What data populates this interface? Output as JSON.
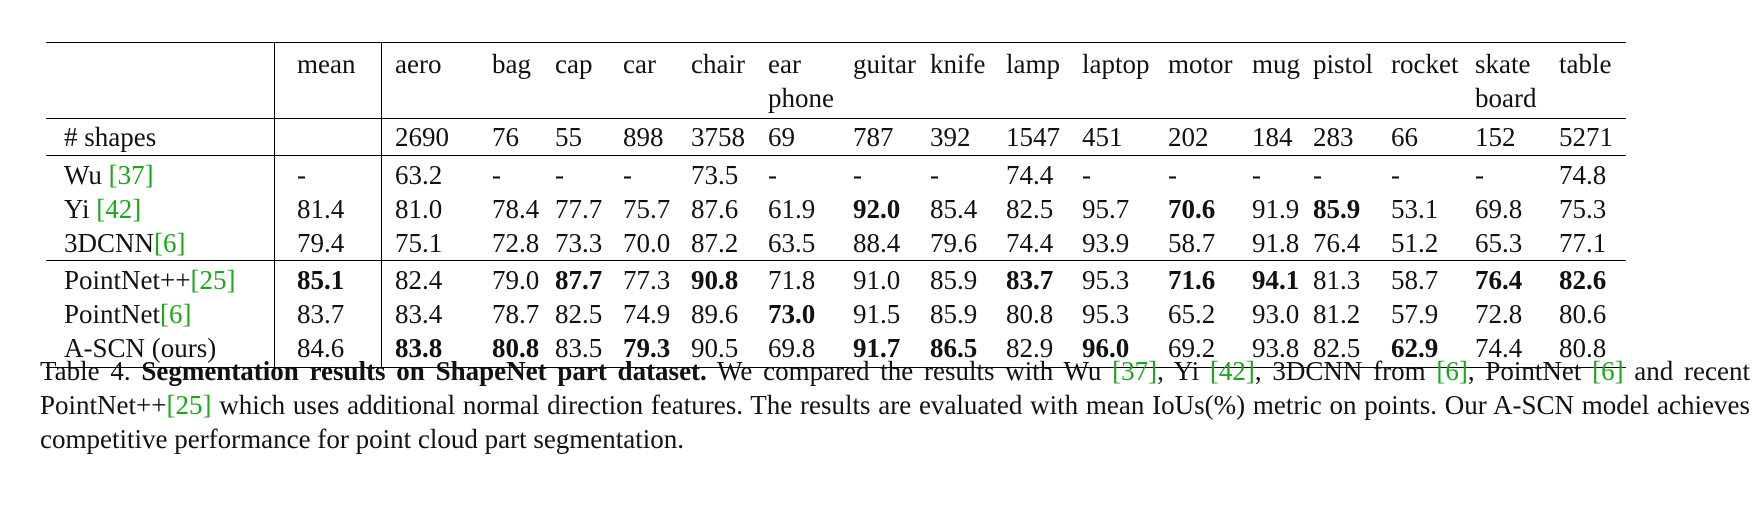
{
  "table": {
    "mean_header": "mean",
    "columns": [
      {
        "l1": "aero",
        "l2": ""
      },
      {
        "l1": "bag",
        "l2": ""
      },
      {
        "l1": "cap",
        "l2": ""
      },
      {
        "l1": "car",
        "l2": ""
      },
      {
        "l1": "chair",
        "l2": ""
      },
      {
        "l1": "ear",
        "l2": "phone"
      },
      {
        "l1": "guitar",
        "l2": ""
      },
      {
        "l1": "knife",
        "l2": ""
      },
      {
        "l1": "lamp",
        "l2": ""
      },
      {
        "l1": "laptop",
        "l2": ""
      },
      {
        "l1": "motor",
        "l2": ""
      },
      {
        "l1": "mug",
        "l2": ""
      },
      {
        "l1": "pistol",
        "l2": ""
      },
      {
        "l1": "rocket",
        "l2": ""
      },
      {
        "l1": "skate",
        "l2": "board"
      },
      {
        "l1": "table",
        "l2": ""
      }
    ],
    "col_widths": [
      97,
      63,
      68,
      68,
      77,
      85,
      77,
      76,
      76,
      86,
      84,
      58,
      78,
      84,
      84,
      80
    ],
    "rows": [
      {
        "name": "# shapes",
        "cite": "",
        "mean": "",
        "values": [
          "2690",
          "76",
          "55",
          "898",
          "3758",
          "69",
          "787",
          "392",
          "1547",
          "451",
          "202",
          "184",
          "283",
          "66",
          "152",
          "5271"
        ],
        "bold": []
      },
      {
        "name": "Wu ",
        "cite": "[37]",
        "mean": "-",
        "values": [
          "63.2",
          "-",
          "-",
          "-",
          "73.5",
          "-",
          "-",
          "-",
          "74.4",
          "-",
          "-",
          "-",
          "-",
          "-",
          "-",
          "74.8"
        ],
        "bold": []
      },
      {
        "name": "Yi ",
        "cite": "[42]",
        "mean": "81.4",
        "values": [
          "81.0",
          "78.4",
          "77.7",
          "75.7",
          "87.6",
          "61.9",
          "92.0",
          "85.4",
          "82.5",
          "95.7",
          "70.6",
          "91.9",
          "85.9",
          "53.1",
          "69.8",
          "75.3"
        ],
        "bold": [
          6,
          10,
          12
        ]
      },
      {
        "name": "3DCNN",
        "cite": "[6]",
        "mean": "79.4",
        "values": [
          "75.1",
          "72.8",
          "73.3",
          "70.0",
          "87.2",
          "63.5",
          "88.4",
          "79.6",
          "74.4",
          "93.9",
          "58.7",
          "91.8",
          "76.4",
          "51.2",
          "65.3",
          "77.1"
        ],
        "bold": []
      },
      {
        "name": "PointNet++",
        "cite": "[25]",
        "mean": "85.1",
        "mean_bold": true,
        "values": [
          "82.4",
          "79.0",
          "87.7",
          "77.3",
          "90.8",
          "71.8",
          "91.0",
          "85.9",
          "83.7",
          "95.3",
          "71.6",
          "94.1",
          "81.3",
          "58.7",
          "76.4",
          "82.6"
        ],
        "bold": [
          2,
          4,
          8,
          10,
          11,
          14,
          15
        ]
      },
      {
        "name": "PointNet",
        "cite": "[6]",
        "mean": "83.7",
        "values": [
          "83.4",
          "78.7",
          "82.5",
          "74.9",
          "89.6",
          "73.0",
          "91.5",
          "85.9",
          "80.8",
          "95.3",
          "65.2",
          "93.0",
          "81.2",
          "57.9",
          "72.8",
          "80.6"
        ],
        "bold": [
          5
        ]
      },
      {
        "name": "A-SCN (ours)",
        "cite": "",
        "mean": "84.6",
        "values": [
          "83.8",
          "80.8",
          "83.5",
          "79.3",
          "90.5",
          "69.8",
          "91.7",
          "86.5",
          "82.9",
          "96.0",
          "69.2",
          "93.8",
          "82.5",
          "62.9",
          "74.4",
          "80.8"
        ],
        "bold": [
          0,
          1,
          3,
          6,
          7,
          9,
          13
        ]
      }
    ]
  },
  "caption": {
    "label": "Table 4. ",
    "title": "Segmentation results on ShapeNet part dataset.",
    "segments": [
      {
        "t": " We compared the results with Wu ",
        "c": false
      },
      {
        "t": "[37]",
        "c": true
      },
      {
        "t": ", Yi ",
        "c": false
      },
      {
        "t": "[42]",
        "c": true
      },
      {
        "t": ", 3DCNN from ",
        "c": false
      },
      {
        "t": "[6]",
        "c": true
      },
      {
        "t": ", PointNet ",
        "c": false
      },
      {
        "t": "[6]",
        "c": true
      },
      {
        "t": " and recent PointNet++",
        "c": false
      },
      {
        "t": "[25]",
        "c": true
      },
      {
        "t": " which uses additional normal direction features. The results are evaluated with mean IoUs(%) metric on points. Our A-SCN model achieves competitive performance for point cloud part segmentation.",
        "c": false
      }
    ]
  },
  "colors": {
    "citation": "#1aa81a",
    "text": "#111111"
  }
}
